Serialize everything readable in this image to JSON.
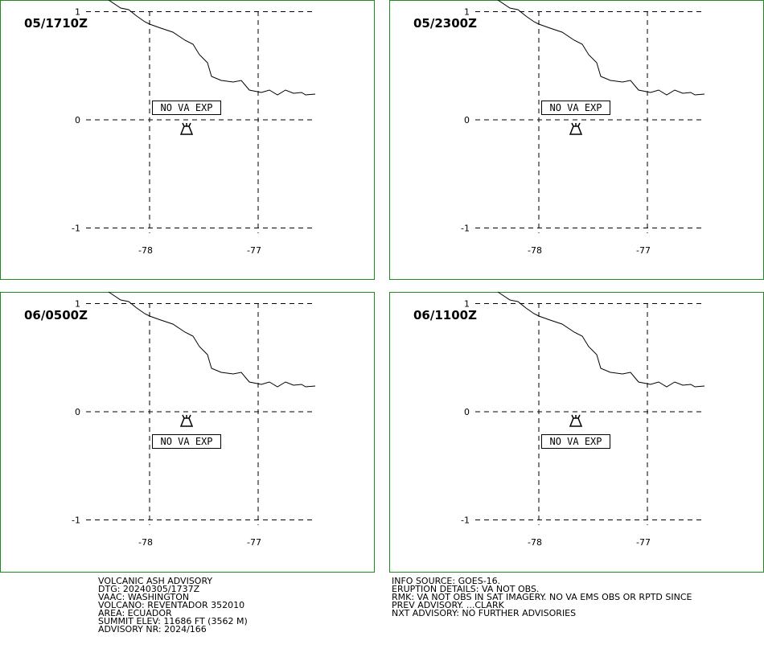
{
  "lat_ticks": [
    1,
    0,
    -1
  ],
  "lon_ticks": [
    -78,
    -77
  ],
  "panels": [
    {
      "time": "05/1710Z",
      "label": "NO VA EXP"
    },
    {
      "time": "05/2300Z",
      "label": "NO VA EXP"
    },
    {
      "time": "06/0500Z",
      "label": "NO VA EXP"
    },
    {
      "time": "06/1100Z",
      "label": "NO VA EXP"
    }
  ],
  "advisory_left": [
    "VOLCANIC ASH ADVISORY",
    "DTG: 20240305/1737Z",
    "VAAC: WASHINGTON",
    "VOLCANO: REVENTADOR 352010",
    "AREA: ECUADOR",
    "SUMMIT ELEV: 11686 FT (3562 M)",
    "ADVISORY NR: 2024/166"
  ],
  "advisory_right": [
    "INFO SOURCE: GOES-16.",
    "ERUPTION DETAILS: VA NOT OBS.",
    "RMK: VA NOT OBS IN SAT IMAGERY. NO VA EMS OBS OR RPTD SINCE",
    "PREV ADVISORY. ...CLARK",
    "NXT ADVISORY: NO FURTHER ADVISORIES"
  ]
}
